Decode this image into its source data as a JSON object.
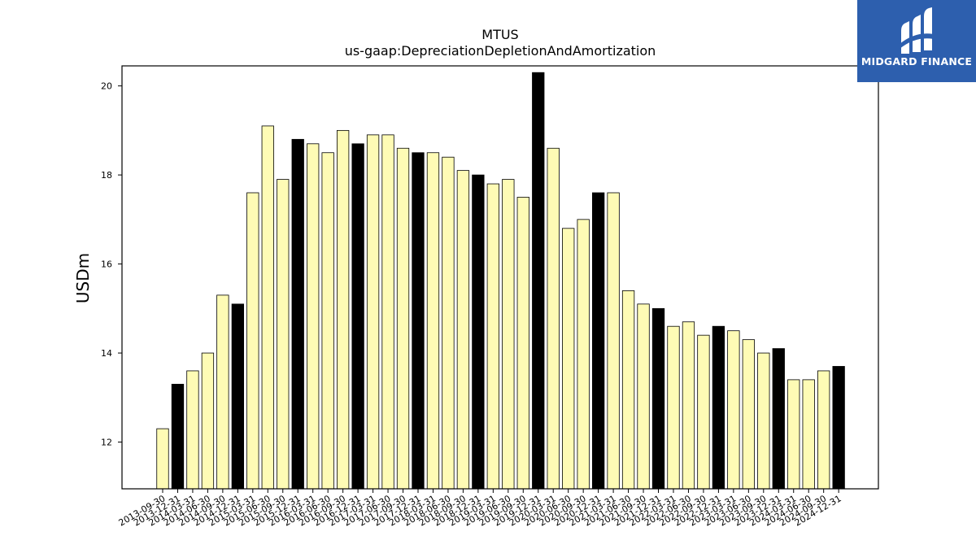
{
  "chart_data": {
    "type": "bar",
    "title": "MTUS",
    "subtitle": "us-gaap:DepreciationDepletionAndAmortization",
    "xlabel": "",
    "ylabel": "USDm",
    "ylim": [
      10.95,
      20.45
    ],
    "yticks": [
      12,
      14,
      16,
      18,
      20
    ],
    "grid": false,
    "legend": "none",
    "colors": {
      "quarter": "#fefbb5",
      "year_end": "#000000",
      "edge": "#000000"
    },
    "categories": [
      "2013-09-30",
      "2013-12-31",
      "2014-03-31",
      "2014-06-30",
      "2014-09-30",
      "2014-12-31",
      "2015-03-31",
      "2015-06-30",
      "2015-09-30",
      "2015-12-31",
      "2016-03-31",
      "2016-06-30",
      "2016-09-30",
      "2016-12-31",
      "2017-03-31",
      "2017-06-30",
      "2017-09-30",
      "2017-12-31",
      "2018-03-31",
      "2018-06-30",
      "2018-09-30",
      "2018-12-31",
      "2019-03-31",
      "2019-06-30",
      "2019-09-30",
      "2019-12-31",
      "2020-03-31",
      "2020-06-30",
      "2020-09-30",
      "2020-12-31",
      "2021-03-31",
      "2021-06-30",
      "2021-09-30",
      "2021-12-31",
      "2022-03-31",
      "2022-06-30",
      "2022-09-30",
      "2022-12-31",
      "2023-03-31",
      "2023-06-30",
      "2023-09-30",
      "2023-12-31",
      "2024-03-31",
      "2024-06-30",
      "2024-09-30",
      "2024-12-31"
    ],
    "values": [
      12.3,
      13.3,
      13.6,
      14.0,
      15.3,
      15.1,
      17.6,
      19.1,
      17.9,
      18.8,
      18.7,
      18.5,
      19.0,
      18.7,
      18.9,
      18.9,
      18.6,
      18.5,
      18.5,
      18.4,
      18.1,
      18.0,
      17.8,
      17.9,
      17.5,
      20.3,
      18.6,
      16.8,
      17.0,
      17.6,
      17.6,
      15.4,
      15.1,
      15.0,
      14.6,
      14.7,
      14.4,
      14.6,
      14.5,
      14.3,
      14.0,
      14.1,
      13.4,
      13.4,
      13.6,
      13.7
    ]
  },
  "logo": {
    "text": "MIDGARD FINANCE",
    "background": "#2d5fae"
  }
}
